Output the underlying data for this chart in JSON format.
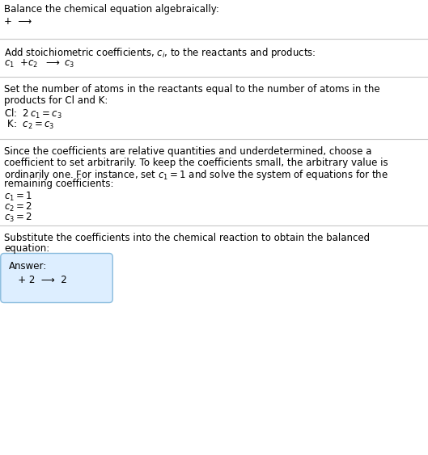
{
  "title": "Balance the chemical equation algebraically:",
  "line1": "+  ⟶",
  "section2_intro": "Add stoichiometric coefficients, $c_i$, to the reactants and products:",
  "section2_eq_parts": [
    "$c_1$  +$c_2$  ⟶ $c_3$"
  ],
  "section3_line1": "Set the number of atoms in the reactants equal to the number of atoms in the",
  "section3_line2": "products for Cl and K:",
  "section3_cl": "Cl:  $2 c_1 = c_3$",
  "section3_k": " K:  $c_2 = c_3$",
  "section4_lines": [
    "Since the coefficients are relative quantities and underdetermined, choose a",
    "coefficient to set arbitrarily. To keep the coefficients small, the arbitrary value is",
    "ordinarily one. For instance, set $c_1 = 1$ and solve the system of equations for the",
    "remaining coefficients:"
  ],
  "section4_c1": "$c_1 = 1$",
  "section4_c2": "$c_2 = 2$",
  "section4_c3": "$c_3 = 2$",
  "section5_line1": "Substitute the coefficients into the chemical reaction to obtain the balanced",
  "section5_line2": "equation:",
  "answer_label": "Answer:",
  "answer_eq": "   + 2  ⟶  2",
  "bg_color": "#ffffff",
  "text_color": "#000000",
  "box_facecolor": "#ddeeff",
  "box_edgecolor": "#88bbdd",
  "sep_color": "#c8c8c8",
  "fs": 8.5,
  "fs_math": 8.5
}
